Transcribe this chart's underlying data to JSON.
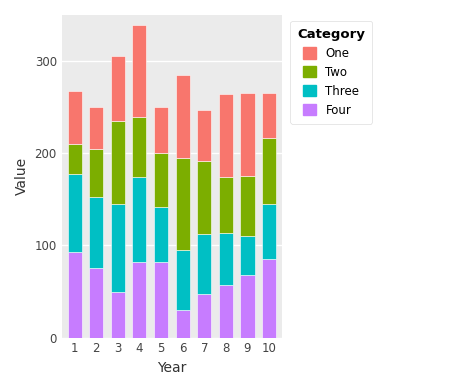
{
  "years": [
    1,
    2,
    3,
    4,
    5,
    6,
    7,
    8,
    9,
    10
  ],
  "four": [
    93,
    75,
    50,
    82,
    82,
    30,
    47,
    57,
    68,
    85
  ],
  "three": [
    85,
    78,
    95,
    92,
    60,
    65,
    65,
    57,
    42,
    60
  ],
  "two": [
    32,
    52,
    90,
    65,
    58,
    100,
    80,
    60,
    65,
    72
  ],
  "one": [
    57,
    45,
    70,
    100,
    50,
    90,
    55,
    90,
    90,
    48
  ],
  "colors": {
    "Four": "#c77cff",
    "Three": "#00bfc4",
    "Two": "#7cae00",
    "One": "#f8766d"
  },
  "xlabel": "Year",
  "ylabel": "Value",
  "ylim": [
    0,
    350
  ],
  "yticks": [
    0,
    100,
    200,
    300
  ],
  "bg_color": "#ffffff",
  "panel_bg": "#ebebeb",
  "legend_title": "Category",
  "bar_width": 0.65
}
